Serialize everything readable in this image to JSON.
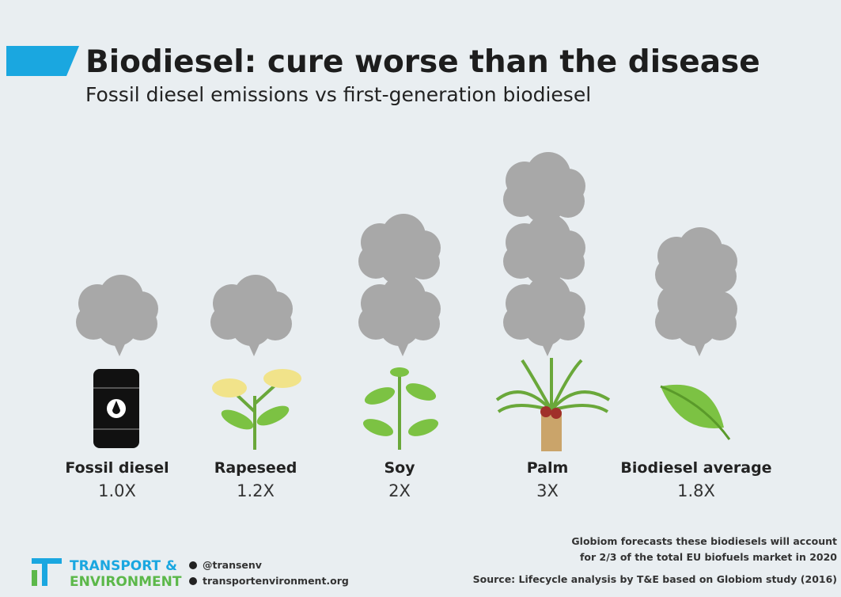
{
  "header": {
    "title": "Biodiesel: cure worse than the disease",
    "subtitle": "Fossil diesel emissions vs first-generation biodiesel"
  },
  "items": [
    {
      "label": "Fossil diesel",
      "multiplier": "1.0X"
    },
    {
      "label": "Rapeseed",
      "multiplier": "1.2X"
    },
    {
      "label": "Soy",
      "multiplier": "2X"
    },
    {
      "label": "Palm",
      "multiplier": "3X"
    },
    {
      "label": "Biodiesel average",
      "multiplier": "1.8X"
    }
  ],
  "footer": {
    "logo_line1": "TRANSPORT &",
    "logo_line2": "ENVIRONMENT",
    "twitter": "@transenv",
    "website": "transportenvironment.org",
    "note_line1": "Globiom forecasts these biodiesels will account",
    "note_line2": "for 2/3 of the total EU biofuels market in 2020",
    "source": "Source: Lifecycle analysis by T&E based on Globiom study (2016)"
  }
}
